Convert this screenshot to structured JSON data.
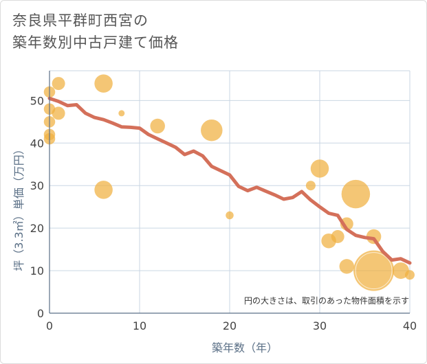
{
  "chart_data": {
    "type": "scatter",
    "title_line1": "奈良県平群町西宮の",
    "title_line2": "築年数別中古戸建て価格",
    "xlabel": "築年数（年）",
    "ylabel": "坪（3.3㎡）単価（万円）",
    "note": "円の大きさは、取引のあった物件面積を示す",
    "xlim": [
      0,
      40
    ],
    "ylim": [
      0,
      57
    ],
    "x_ticks": [
      0,
      10,
      20,
      30,
      40
    ],
    "y_ticks": [
      0,
      10,
      20,
      30,
      40,
      50
    ],
    "grid": true,
    "colors": {
      "bubble": "#f0b040",
      "trend": "#d4705a",
      "grid": "#c9d6e3",
      "axis": "#5a6f86"
    },
    "series": [
      {
        "kind": "bubble",
        "points": [
          {
            "x": 0,
            "y": 52,
            "size": 5
          },
          {
            "x": 0,
            "y": 48,
            "size": 5
          },
          {
            "x": 0,
            "y": 45,
            "size": 5
          },
          {
            "x": 0,
            "y": 42,
            "size": 5
          },
          {
            "x": 0,
            "y": 41,
            "size": 5
          },
          {
            "x": 1,
            "y": 54,
            "size": 6
          },
          {
            "x": 1,
            "y": 47,
            "size": 6
          },
          {
            "x": 6,
            "y": 54,
            "size": 9
          },
          {
            "x": 6,
            "y": 29,
            "size": 9
          },
          {
            "x": 8,
            "y": 47,
            "size": 2
          },
          {
            "x": 12,
            "y": 44,
            "size": 7
          },
          {
            "x": 18,
            "y": 43,
            "size": 11
          },
          {
            "x": 20,
            "y": 23,
            "size": 3
          },
          {
            "x": 29,
            "y": 30,
            "size": 4
          },
          {
            "x": 30,
            "y": 34,
            "size": 9
          },
          {
            "x": 31,
            "y": 17,
            "size": 7
          },
          {
            "x": 32,
            "y": 18,
            "size": 6
          },
          {
            "x": 33,
            "y": 21,
            "size": 6
          },
          {
            "x": 33,
            "y": 11,
            "size": 7
          },
          {
            "x": 34,
            "y": 28,
            "size": 15
          },
          {
            "x": 36,
            "y": 18,
            "size": 7
          },
          {
            "x": 36,
            "y": 10,
            "size": 22
          },
          {
            "x": 39,
            "y": 10,
            "size": 8
          },
          {
            "x": 40,
            "y": 9,
            "size": 4
          }
        ]
      },
      {
        "kind": "line",
        "x": [
          0,
          1,
          2,
          3,
          4,
          5,
          6,
          7,
          8,
          9,
          10,
          11,
          12,
          13,
          14,
          15,
          16,
          17,
          18,
          19,
          20,
          21,
          22,
          23,
          24,
          25,
          26,
          27,
          28,
          29,
          30,
          31,
          32,
          33,
          34,
          35,
          36,
          37,
          38,
          39,
          40
        ],
        "y": [
          50.5,
          49.8,
          48.8,
          49.0,
          47.0,
          46.0,
          45.5,
          44.7,
          43.8,
          43.7,
          43.5,
          42.0,
          41.0,
          40.0,
          39.0,
          37.3,
          38.1,
          37.0,
          34.5,
          33.5,
          32.5,
          29.8,
          28.8,
          29.6,
          28.7,
          27.8,
          26.8,
          27.2,
          28.6,
          26.6,
          25.0,
          23.5,
          23.0,
          19.7,
          18.3,
          17.8,
          17.5,
          14.5,
          12.5,
          12.8,
          11.8
        ]
      }
    ]
  }
}
